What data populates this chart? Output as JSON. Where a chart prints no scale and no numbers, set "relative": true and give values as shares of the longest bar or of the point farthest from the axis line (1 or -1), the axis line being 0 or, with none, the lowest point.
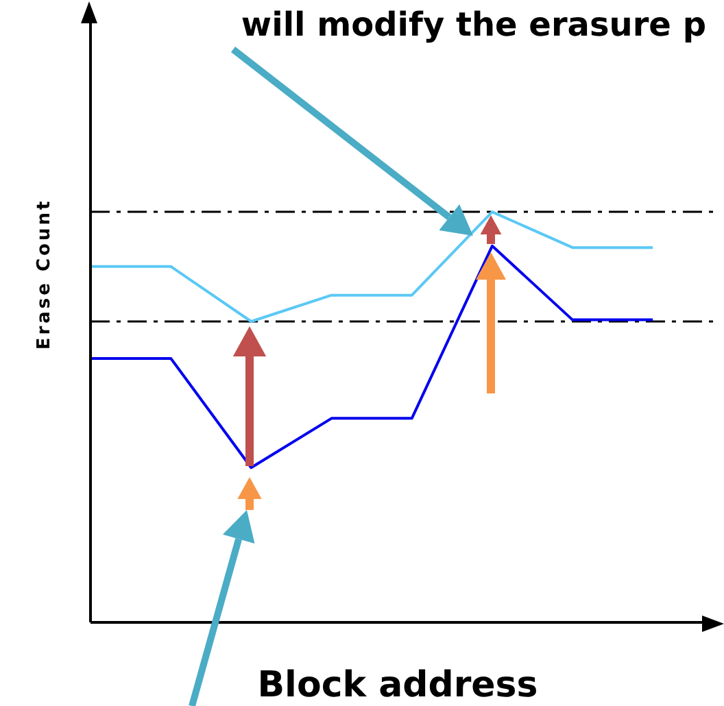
{
  "chart_data": {
    "type": "line",
    "title": "will modify the erasure p",
    "xlabel": "Block address",
    "ylabel": "Erase Count",
    "relative": true,
    "categories": [
      null,
      null,
      null,
      null,
      null,
      null,
      null,
      null
    ],
    "series": [
      {
        "color": "#5bc8f5",
        "values": [
          0.867,
          0.867,
          0.733,
          0.797,
          0.797,
          1,
          0.913,
          0.913
        ]
      },
      {
        "color": "#0000ee",
        "values": [
          0.643,
          0.643,
          0.377,
          0.497,
          0.497,
          0.917,
          0.737,
          0.737
        ]
      }
    ],
    "ref_lines": [
      {
        "axis": "y",
        "value": 1,
        "color": "#000000",
        "line_style": "dashed"
      },
      {
        "axis": "y",
        "value": 0.733,
        "color": "#000000",
        "line_style": "dashed"
      }
    ],
    "marker": "none",
    "line_style": "solid"
  }
}
